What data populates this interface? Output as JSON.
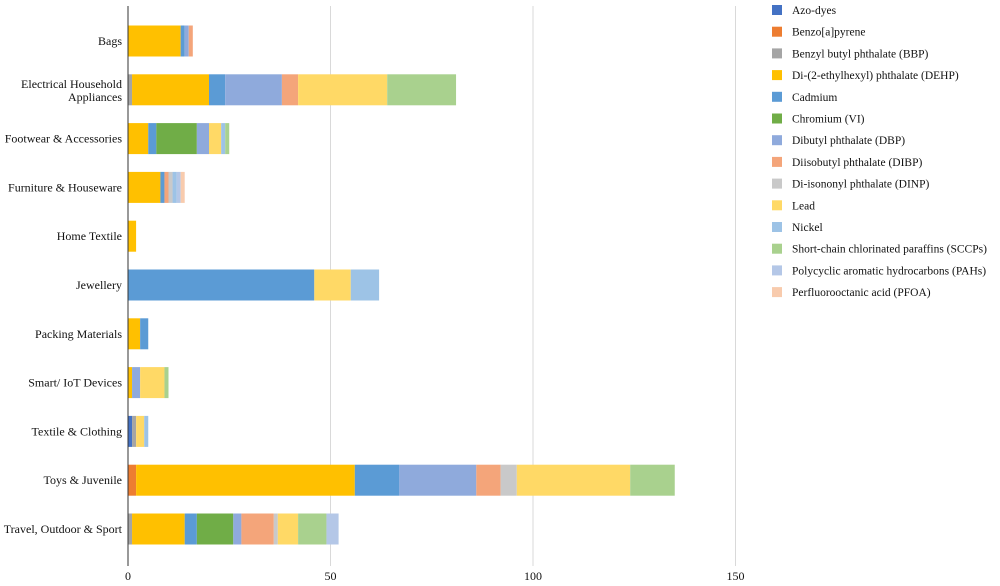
{
  "chart_data": {
    "type": "bar",
    "orientation": "horizontal",
    "stacked": true,
    "title": "",
    "xlabel": "",
    "ylabel": "",
    "xlim": [
      0,
      150
    ],
    "x_ticks": [
      0,
      50,
      100,
      150
    ],
    "grid": "vertical",
    "legend_position": "right",
    "categories": [
      "Bags",
      "Electrical Household Appliances",
      "Footwear & Accessories",
      "Furniture & Houseware",
      "Home Textile",
      "Jewellery",
      "Packing Materials",
      "Smart/ IoT Devices",
      "Textile & Clothing",
      "Toys & Juvenile",
      "Travel, Outdoor & Sport"
    ],
    "series": [
      {
        "name": "Azo-dyes",
        "color": "#4472C4",
        "values": [
          0,
          0,
          0,
          0,
          0,
          0,
          0,
          0,
          1,
          0,
          0
        ]
      },
      {
        "name": "Benzo[a]pyrene",
        "color": "#ED7D31",
        "values": [
          0,
          0,
          0,
          0,
          0,
          0,
          0,
          0,
          0,
          2,
          0
        ]
      },
      {
        "name": "Benzyl butyl phthalate (BBP)",
        "color": "#A5A5A5",
        "values": [
          0,
          1,
          0,
          0,
          0,
          0,
          0,
          0,
          1,
          0,
          1
        ]
      },
      {
        "name": "Di-(2-ethylhexyl) phthalate (DEHP)",
        "color": "#FFC000",
        "values": [
          13,
          19,
          5,
          8,
          2,
          0,
          3,
          1,
          0,
          54,
          13
        ]
      },
      {
        "name": "Cadmium",
        "color": "#5B9BD5",
        "values": [
          1,
          4,
          2,
          1,
          0,
          46,
          2,
          0,
          0,
          11,
          3
        ]
      },
      {
        "name": "Chromium (VI)",
        "color": "#70AD47",
        "values": [
          0,
          0,
          10,
          0,
          0,
          0,
          0,
          0,
          0,
          0,
          9
        ]
      },
      {
        "name": "Dibutyl phthalate (DBP)",
        "color": "#8FAADC",
        "values": [
          1,
          14,
          3,
          0,
          0,
          0,
          0,
          2,
          0,
          19,
          2
        ]
      },
      {
        "name": "Diisobutyl phthalate (DIBP)",
        "color": "#F4A57A",
        "values": [
          1,
          4,
          0,
          1,
          0,
          0,
          0,
          0,
          0,
          6,
          8
        ]
      },
      {
        "name": "Di-isononyl phthalate (DINP)",
        "color": "#C9C9C9",
        "values": [
          0,
          0,
          0,
          1,
          0,
          0,
          0,
          0,
          0,
          4,
          1
        ]
      },
      {
        "name": "Lead",
        "color": "#FFD966",
        "values": [
          0,
          22,
          3,
          0,
          0,
          9,
          0,
          6,
          2,
          28,
          5
        ]
      },
      {
        "name": "Nickel",
        "color": "#9DC3E6",
        "values": [
          0,
          0,
          1,
          1,
          0,
          7,
          0,
          0,
          1,
          0,
          0
        ]
      },
      {
        "name": "Short-chain chlorinated paraffins (SCCPs)",
        "color": "#A9D18E",
        "values": [
          0,
          17,
          1,
          0,
          0,
          0,
          0,
          1,
          0,
          11,
          7
        ]
      },
      {
        "name": " Polycyclic aromatic hydrocarbons (PAHs)",
        "color": "#B4C7E7",
        "values": [
          0,
          0,
          0,
          1,
          0,
          0,
          0,
          0,
          0,
          0,
          3
        ]
      },
      {
        "name": "Perfluorooctanic acid (PFOA)",
        "color": "#F8CBAD",
        "values": [
          0,
          0,
          0,
          1,
          0,
          0,
          0,
          0,
          0,
          0,
          0
        ]
      }
    ]
  }
}
